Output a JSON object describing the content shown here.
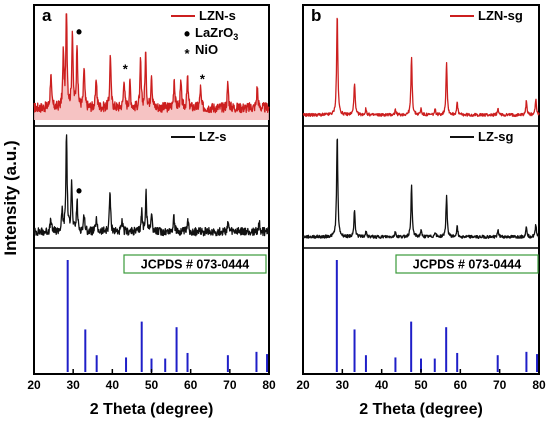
{
  "ylabel": "Intensity (a.u.)",
  "chart_data": [
    {
      "type": "line",
      "panel_label": "a",
      "xlabel": "2 Theta (degree)",
      "xlim": [
        20,
        80
      ],
      "xticks": [
        20,
        30,
        40,
        50,
        60,
        70,
        80
      ],
      "subplots": [
        {
          "type": "line",
          "series_name": "LZN-s",
          "color": "#cc1f1f",
          "shaded": true,
          "baseline": 0.12,
          "noise": 0.05,
          "peaks": [
            {
              "x": 24.3,
              "h": 0.35
            },
            {
              "x": 27.5,
              "h": 0.55
            },
            {
              "x": 28.3,
              "h": 1.0
            },
            {
              "x": 29.8,
              "h": 0.75
            },
            {
              "x": 31.0,
              "h": 0.65
            },
            {
              "x": 32.8,
              "h": 0.4
            },
            {
              "x": 35.9,
              "h": 0.3
            },
            {
              "x": 39.5,
              "h": 0.55
            },
            {
              "x": 43.0,
              "h": 0.3
            },
            {
              "x": 44.5,
              "h": 0.25
            },
            {
              "x": 47.2,
              "h": 0.45
            },
            {
              "x": 48.5,
              "h": 0.55
            },
            {
              "x": 50.0,
              "h": 0.35
            },
            {
              "x": 55.8,
              "h": 0.3
            },
            {
              "x": 57.5,
              "h": 0.25
            },
            {
              "x": 59.2,
              "h": 0.3
            },
            {
              "x": 62.5,
              "h": 0.2
            },
            {
              "x": 69.5,
              "h": 0.25
            },
            {
              "x": 77.0,
              "h": 0.22
            }
          ],
          "markers": [
            {
              "x": 31.0,
              "symbol": "•"
            },
            {
              "x": 43.3,
              "symbol": "*"
            },
            {
              "x": 63.0,
              "symbol": "*"
            }
          ],
          "legend": [
            {
              "label": "LZN-s",
              "kind": "line"
            },
            {
              "label": "LaZrO",
              "sub": "3",
              "kind": "dot"
            },
            {
              "label": "NiO",
              "kind": "star"
            }
          ]
        },
        {
          "type": "line",
          "series_name": "LZ-s",
          "color": "#111111",
          "shaded": false,
          "baseline": 0.1,
          "noise": 0.04,
          "peaks": [
            {
              "x": 24.3,
              "h": 0.12
            },
            {
              "x": 27.2,
              "h": 0.2
            },
            {
              "x": 28.3,
              "h": 1.0
            },
            {
              "x": 29.6,
              "h": 0.5
            },
            {
              "x": 31.0,
              "h": 0.3
            },
            {
              "x": 32.8,
              "h": 0.18
            },
            {
              "x": 35.9,
              "h": 0.12
            },
            {
              "x": 39.4,
              "h": 0.4
            },
            {
              "x": 42.5,
              "h": 0.1
            },
            {
              "x": 47.5,
              "h": 0.2
            },
            {
              "x": 48.6,
              "h": 0.38
            },
            {
              "x": 50.0,
              "h": 0.2
            },
            {
              "x": 55.7,
              "h": 0.16
            },
            {
              "x": 59.3,
              "h": 0.1
            },
            {
              "x": 69.5,
              "h": 0.1
            },
            {
              "x": 77.5,
              "h": 0.1
            }
          ],
          "markers": [
            {
              "x": 31.0,
              "symbol": "•"
            }
          ],
          "legend": [
            {
              "label": "LZ-s",
              "kind": "line"
            }
          ]
        },
        {
          "type": "bar",
          "series_name": "JCPDS # 073-0444",
          "color": "#1f1fc8",
          "reference_label": "JCPDS # 073-0444",
          "x": [
            28.6,
            33.1,
            36.0,
            43.5,
            47.5,
            50.0,
            53.5,
            56.4,
            59.2,
            69.5,
            76.8,
            79.5
          ],
          "values": [
            100,
            38,
            15,
            13,
            45,
            12,
            12,
            40,
            17,
            15,
            18,
            16
          ]
        }
      ]
    },
    {
      "type": "line",
      "panel_label": "b",
      "xlabel": "2 Theta (degree)",
      "xlim": [
        20,
        80
      ],
      "xticks": [
        20,
        30,
        40,
        50,
        60,
        70,
        80
      ],
      "subplots": [
        {
          "type": "line",
          "series_name": "LZN-sg",
          "color": "#cc1f1f",
          "shaded": false,
          "baseline": 0.05,
          "noise": 0.015,
          "peaks": [
            {
              "x": 28.7,
              "h": 1.0
            },
            {
              "x": 33.1,
              "h": 0.32
            },
            {
              "x": 36.0,
              "h": 0.06
            },
            {
              "x": 43.5,
              "h": 0.05
            },
            {
              "x": 47.6,
              "h": 0.58
            },
            {
              "x": 50.0,
              "h": 0.06
            },
            {
              "x": 53.6,
              "h": 0.05
            },
            {
              "x": 56.5,
              "h": 0.52
            },
            {
              "x": 59.2,
              "h": 0.12
            },
            {
              "x": 69.6,
              "h": 0.06
            },
            {
              "x": 76.8,
              "h": 0.14
            },
            {
              "x": 79.2,
              "h": 0.16
            }
          ],
          "markers": [],
          "legend": [
            {
              "label": "LZN-sg",
              "kind": "line"
            }
          ]
        },
        {
          "type": "line",
          "series_name": "LZ-sg",
          "color": "#111111",
          "shaded": false,
          "baseline": 0.05,
          "noise": 0.015,
          "peaks": [
            {
              "x": 28.7,
              "h": 1.0
            },
            {
              "x": 33.1,
              "h": 0.26
            },
            {
              "x": 36.0,
              "h": 0.05
            },
            {
              "x": 43.5,
              "h": 0.05
            },
            {
              "x": 47.6,
              "h": 0.5
            },
            {
              "x": 50.0,
              "h": 0.06
            },
            {
              "x": 53.6,
              "h": 0.05
            },
            {
              "x": 56.5,
              "h": 0.4
            },
            {
              "x": 59.2,
              "h": 0.1
            },
            {
              "x": 69.6,
              "h": 0.06
            },
            {
              "x": 76.8,
              "h": 0.1
            },
            {
              "x": 79.2,
              "h": 0.12
            }
          ],
          "markers": [],
          "legend": [
            {
              "label": "LZ-sg",
              "kind": "line"
            }
          ]
        },
        {
          "type": "bar",
          "series_name": "JCPDS # 073-0444",
          "color": "#1f1fc8",
          "reference_label": "JCPDS # 073-0444",
          "x": [
            28.6,
            33.1,
            36.0,
            43.5,
            47.5,
            50.0,
            53.5,
            56.4,
            59.2,
            69.5,
            76.8,
            79.5
          ],
          "values": [
            100,
            38,
            15,
            13,
            45,
            12,
            12,
            40,
            17,
            15,
            18,
            16
          ]
        }
      ]
    }
  ]
}
